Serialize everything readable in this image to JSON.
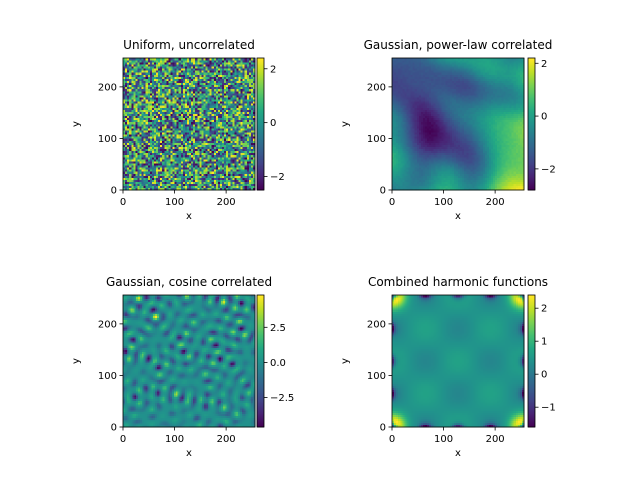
{
  "figure": {
    "background": "#ffffff",
    "colormap": "viridis"
  },
  "chart_data": [
    {
      "type": "heatmap",
      "title": "Uniform, uncorrelated",
      "xlabel": "x",
      "ylabel": "y",
      "grid_size": [
        256,
        256
      ],
      "xlim": [
        0,
        256
      ],
      "ylim": [
        0,
        256
      ],
      "xticks": [
        0,
        100,
        200
      ],
      "yticks": [
        0,
        100,
        200
      ],
      "pattern": "uniform-noise",
      "colorbar": {
        "min": -2.5,
        "max": 2.4,
        "ticks": [
          -2,
          0,
          2
        ],
        "ticklabels": [
          "−2",
          "0",
          "2"
        ]
      }
    },
    {
      "type": "heatmap",
      "title": "Gaussian, power-law correlated",
      "xlabel": "x",
      "ylabel": "y",
      "grid_size": [
        256,
        256
      ],
      "xlim": [
        0,
        256
      ],
      "ylim": [
        0,
        256
      ],
      "xticks": [
        0,
        100,
        200
      ],
      "yticks": [
        0,
        100,
        200
      ],
      "pattern": "power-law-field",
      "colorbar": {
        "min": -2.8,
        "max": 2.2,
        "ticks": [
          -2,
          0,
          2
        ],
        "ticklabels": [
          "−2",
          "0",
          "2"
        ]
      }
    },
    {
      "type": "heatmap",
      "title": "Gaussian, cosine correlated",
      "xlabel": "x",
      "ylabel": "y",
      "grid_size": [
        256,
        256
      ],
      "xlim": [
        0,
        256
      ],
      "ylim": [
        0,
        256
      ],
      "xticks": [
        0,
        100,
        200
      ],
      "yticks": [
        0,
        100,
        200
      ],
      "pattern": "cosine-field",
      "colorbar": {
        "min": -4.6,
        "max": 4.8,
        "ticks": [
          -2.5,
          0,
          2.5
        ],
        "ticklabels": [
          "−2.5",
          "0.0",
          "2.5"
        ]
      }
    },
    {
      "type": "heatmap",
      "title": "Combined harmonic functions",
      "xlabel": "x",
      "ylabel": "y",
      "grid_size": [
        256,
        256
      ],
      "xlim": [
        0,
        256
      ],
      "ylim": [
        0,
        256
      ],
      "xticks": [
        0,
        100,
        200
      ],
      "yticks": [
        0,
        100,
        200
      ],
      "pattern": "harmonic-field",
      "colorbar": {
        "min": -1.6,
        "max": 2.4,
        "ticks": [
          -1,
          0,
          1,
          2
        ],
        "ticklabels": [
          "−1",
          "0",
          "1",
          "2"
        ]
      }
    }
  ]
}
